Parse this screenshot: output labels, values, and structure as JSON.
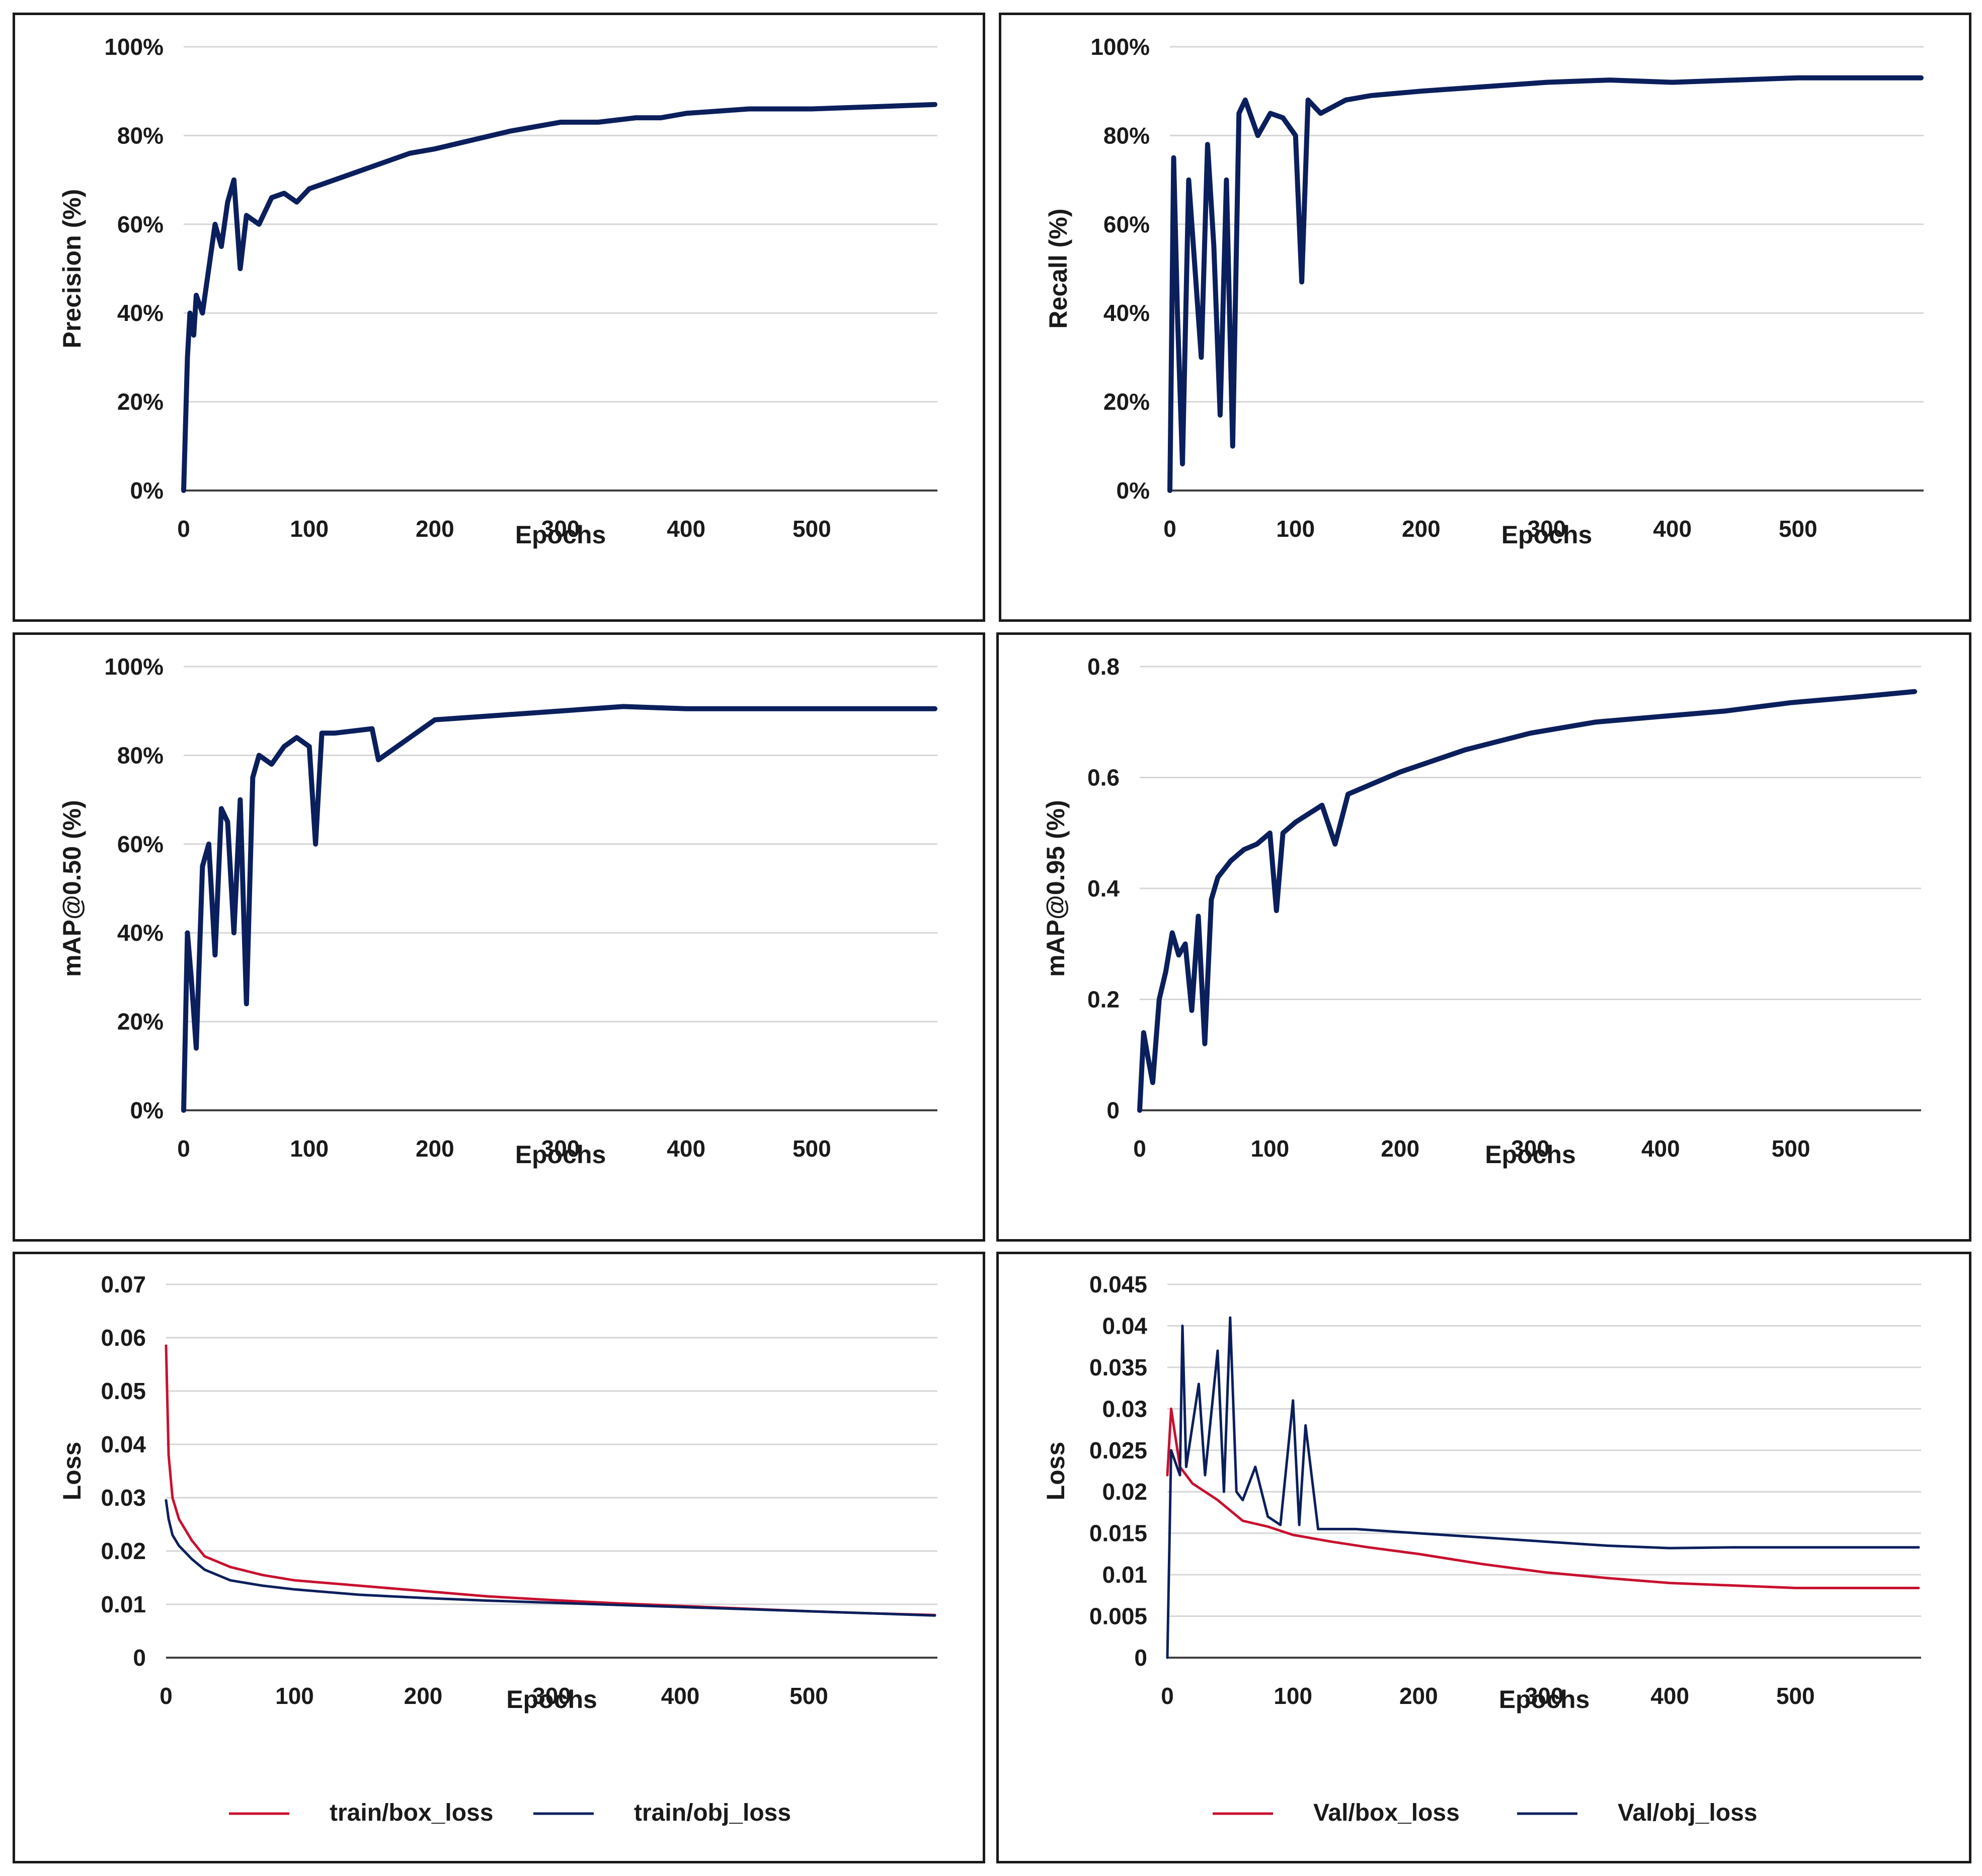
{
  "colors": {
    "series_navy": "#0b1f5c",
    "series_red": "#c8102e",
    "grid": "#d6d6d6",
    "axis": "#404040",
    "text": "#1a1a1a"
  },
  "chart_data": [
    {
      "type": "line",
      "title": "",
      "xlabel": "Epochs",
      "ylabel": "Precision (%)",
      "xlim": [
        0,
        600
      ],
      "ylim": [
        0,
        100
      ],
      "xticks": [
        0,
        100,
        200,
        300,
        400,
        500
      ],
      "xtick_labels": [
        "0",
        "100",
        "200",
        "300",
        "400",
        "500"
      ],
      "yticks": [
        0,
        20,
        40,
        60,
        80,
        100
      ],
      "ytick_labels": [
        "0%",
        "20%",
        "40%",
        "60%",
        "80%",
        "100%"
      ],
      "legend": [],
      "series": [
        {
          "name": "precision",
          "color": "#0b1f5c",
          "width": 10,
          "x": [
            0,
            3,
            5,
            8,
            10,
            15,
            20,
            25,
            30,
            35,
            40,
            45,
            50,
            60,
            70,
            80,
            90,
            100,
            120,
            140,
            160,
            180,
            200,
            230,
            260,
            300,
            330,
            360,
            380,
            400,
            450,
            500,
            550,
            598
          ],
          "y": [
            0,
            30,
            40,
            35,
            44,
            40,
            50,
            60,
            55,
            65,
            70,
            50,
            62,
            60,
            66,
            67,
            65,
            68,
            70,
            72,
            74,
            76,
            77,
            79,
            81,
            83,
            83,
            84,
            84,
            85,
            86,
            86,
            86.5,
            87
          ]
        }
      ]
    },
    {
      "type": "line",
      "title": "",
      "xlabel": "Epochs",
      "ylabel": "Recall (%)",
      "xlim": [
        0,
        600
      ],
      "ylim": [
        0,
        100
      ],
      "xticks": [
        0,
        100,
        200,
        300,
        400,
        500
      ],
      "xtick_labels": [
        "0",
        "100",
        "200",
        "300",
        "400",
        "500"
      ],
      "yticks": [
        0,
        20,
        40,
        60,
        80,
        100
      ],
      "ytick_labels": [
        "0%",
        "20%",
        "40%",
        "60%",
        "80%",
        "100%"
      ],
      "legend": [],
      "series": [
        {
          "name": "recall",
          "color": "#0b1f5c",
          "width": 10,
          "x": [
            0,
            3,
            6,
            10,
            15,
            20,
            25,
            30,
            35,
            40,
            45,
            50,
            55,
            60,
            70,
            80,
            90,
            100,
            105,
            110,
            120,
            140,
            160,
            200,
            250,
            300,
            350,
            400,
            450,
            500,
            550,
            598
          ],
          "y": [
            0,
            75,
            40,
            6,
            70,
            50,
            30,
            78,
            55,
            17,
            70,
            10,
            85,
            88,
            80,
            85,
            84,
            80,
            47,
            88,
            85,
            88,
            89,
            90,
            91,
            92,
            92.5,
            92,
            92.5,
            93,
            93,
            93
          ]
        }
      ]
    },
    {
      "type": "line",
      "title": "",
      "xlabel": "Epochs",
      "ylabel": "mAP@0.50 (%)",
      "xlim": [
        0,
        600
      ],
      "ylim": [
        0,
        100
      ],
      "xticks": [
        0,
        100,
        200,
        300,
        400,
        500
      ],
      "xtick_labels": [
        "0",
        "100",
        "200",
        "300",
        "400",
        "500"
      ],
      "yticks": [
        0,
        20,
        40,
        60,
        80,
        100
      ],
      "ytick_labels": [
        "0%",
        "20%",
        "40%",
        "60%",
        "80%",
        "100%"
      ],
      "legend": [],
      "series": [
        {
          "name": "map50",
          "color": "#0b1f5c",
          "width": 10,
          "x": [
            0,
            3,
            6,
            10,
            15,
            20,
            25,
            30,
            35,
            40,
            45,
            50,
            55,
            60,
            70,
            80,
            90,
            100,
            105,
            110,
            120,
            150,
            155,
            200,
            250,
            300,
            350,
            400,
            450,
            500,
            550,
            598
          ],
          "y": [
            0,
            40,
            30,
            14,
            55,
            60,
            35,
            68,
            65,
            40,
            70,
            24,
            75,
            80,
            78,
            82,
            84,
            82,
            60,
            85,
            85,
            86,
            79,
            88,
            89,
            90,
            91,
            90.5,
            90.5,
            90.5,
            90.5,
            90.5
          ]
        }
      ]
    },
    {
      "type": "line",
      "title": "",
      "xlabel": "Epochs",
      "ylabel": "mAP@0.95 (%)",
      "xlim": [
        0,
        600
      ],
      "ylim": [
        0,
        0.8
      ],
      "xticks": [
        0,
        100,
        200,
        300,
        400,
        500
      ],
      "xtick_labels": [
        "0",
        "100",
        "200",
        "300",
        "400",
        "500"
      ],
      "yticks": [
        0,
        0.2,
        0.4,
        0.6,
        0.8
      ],
      "ytick_labels": [
        "0",
        "0.2",
        "0.4",
        "0.6",
        "0.8"
      ],
      "legend": [],
      "series": [
        {
          "name": "map95",
          "color": "#0b1f5c",
          "width": 10,
          "x": [
            0,
            3,
            6,
            10,
            15,
            20,
            25,
            30,
            35,
            40,
            45,
            50,
            55,
            60,
            70,
            80,
            90,
            100,
            105,
            110,
            120,
            140,
            150,
            160,
            180,
            200,
            250,
            300,
            350,
            400,
            450,
            500,
            550,
            595
          ],
          "y": [
            0,
            0.14,
            0.1,
            0.05,
            0.2,
            0.25,
            0.32,
            0.28,
            0.3,
            0.18,
            0.35,
            0.12,
            0.38,
            0.42,
            0.45,
            0.47,
            0.48,
            0.5,
            0.36,
            0.5,
            0.52,
            0.55,
            0.48,
            0.57,
            0.59,
            0.61,
            0.65,
            0.68,
            0.7,
            0.71,
            0.72,
            0.735,
            0.745,
            0.755
          ]
        }
      ]
    },
    {
      "type": "line",
      "title": "",
      "xlabel": "Epochs",
      "ylabel": "Loss",
      "xlim": [
        0,
        600
      ],
      "ylim": [
        0,
        0.07
      ],
      "xticks": [
        0,
        100,
        200,
        300,
        400,
        500
      ],
      "xtick_labels": [
        "0",
        "100",
        "200",
        "300",
        "400",
        "500"
      ],
      "yticks": [
        0,
        0.01,
        0.02,
        0.03,
        0.04,
        0.05,
        0.06,
        0.07
      ],
      "ytick_labels": [
        "0",
        "0.01",
        "0.02",
        "0.03",
        "0.04",
        "0.05",
        "0.06",
        "0.07"
      ],
      "legend": [
        {
          "label": "train/box_loss",
          "color": "#c8102e"
        },
        {
          "label": "train/obj_loss",
          "color": "#0b1f5c"
        }
      ],
      "series": [
        {
          "name": "train/box_loss",
          "color": "#c8102e",
          "width": 5,
          "x": [
            0,
            2,
            5,
            10,
            20,
            30,
            50,
            75,
            100,
            150,
            200,
            250,
            300,
            350,
            400,
            450,
            500,
            550,
            598
          ],
          "y": [
            0.0585,
            0.038,
            0.03,
            0.026,
            0.022,
            0.019,
            0.017,
            0.0155,
            0.0145,
            0.0135,
            0.0125,
            0.0115,
            0.0108,
            0.0102,
            0.0097,
            0.0092,
            0.0087,
            0.0083,
            0.008
          ]
        },
        {
          "name": "train/obj_loss",
          "color": "#0b1f5c",
          "width": 5,
          "x": [
            0,
            2,
            5,
            10,
            20,
            30,
            50,
            75,
            100,
            150,
            200,
            250,
            300,
            350,
            400,
            450,
            500,
            550,
            598
          ],
          "y": [
            0.0295,
            0.026,
            0.023,
            0.021,
            0.0185,
            0.0165,
            0.0145,
            0.0135,
            0.0128,
            0.0118,
            0.0112,
            0.0107,
            0.0103,
            0.0099,
            0.0095,
            0.0091,
            0.0087,
            0.0083,
            0.0079
          ]
        }
      ]
    },
    {
      "type": "line",
      "title": "",
      "xlabel": "Epochs",
      "ylabel": "Loss",
      "xlim": [
        0,
        600
      ],
      "ylim": [
        0,
        0.045
      ],
      "xticks": [
        0,
        100,
        200,
        300,
        400,
        500
      ],
      "xtick_labels": [
        "0",
        "100",
        "200",
        "300",
        "400",
        "500"
      ],
      "yticks": [
        0,
        0.005,
        0.01,
        0.015,
        0.02,
        0.025,
        0.03,
        0.035,
        0.04,
        0.045
      ],
      "ytick_labels": [
        "0",
        "0.005",
        "0.01",
        "0.015",
        "0.02",
        "0.025",
        "0.03",
        "0.035",
        "0.04",
        "0.045"
      ],
      "legend": [
        {
          "label": "Val/box_loss",
          "color": "#c8102e"
        },
        {
          "label": "Val/obj_loss",
          "color": "#0b1f5c"
        }
      ],
      "series": [
        {
          "name": "Val/box_loss",
          "color": "#c8102e",
          "width": 5,
          "x": [
            0,
            3,
            10,
            20,
            40,
            60,
            80,
            100,
            130,
            160,
            200,
            250,
            300,
            350,
            400,
            450,
            500,
            550,
            598
          ],
          "y": [
            0.022,
            0.03,
            0.023,
            0.021,
            0.019,
            0.0165,
            0.0158,
            0.0148,
            0.014,
            0.0133,
            0.0125,
            0.0113,
            0.0103,
            0.0096,
            0.009,
            0.0087,
            0.0084,
            0.0084,
            0.0084
          ]
        },
        {
          "name": "Val/obj_loss",
          "color": "#0b1f5c",
          "width": 5,
          "x": [
            0,
            3,
            10,
            12,
            15,
            20,
            25,
            30,
            40,
            45,
            50,
            55,
            60,
            70,
            80,
            90,
            100,
            105,
            110,
            120,
            150,
            200,
            250,
            300,
            350,
            400,
            450,
            500,
            550,
            598
          ],
          "y": [
            0,
            0.025,
            0.022,
            0.04,
            0.023,
            0.028,
            0.033,
            0.022,
            0.037,
            0.02,
            0.041,
            0.02,
            0.019,
            0.023,
            0.017,
            0.016,
            0.031,
            0.016,
            0.028,
            0.0155,
            0.0155,
            0.015,
            0.0145,
            0.014,
            0.0135,
            0.0132,
            0.0133,
            0.0133,
            0.0133,
            0.0133
          ]
        }
      ]
    }
  ]
}
